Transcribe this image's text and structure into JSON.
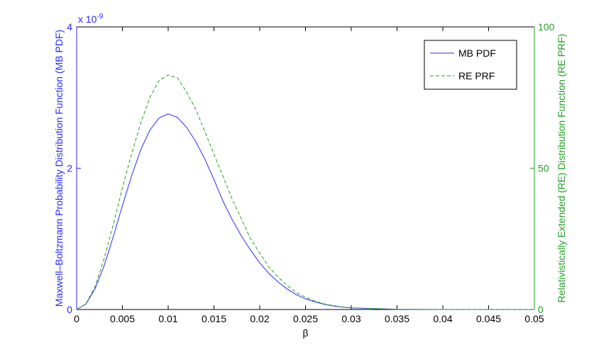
{
  "chart_data": {
    "type": "line",
    "xlabel": "β",
    "ylabel": "Maxwell–Boltzmann Probability Distribution Function (MB PDF)",
    "y2label": "Relativistically Extended (RE) Distribution Function (RE PRF)",
    "y_scale_label": "x 10",
    "y_scale_exponent": "-9",
    "xlim": [
      0,
      0.05
    ],
    "xticks": [
      0,
      0.005,
      0.01,
      0.015,
      0.02,
      0.025,
      0.03,
      0.035,
      0.04,
      0.045,
      0.05
    ],
    "ylim": [
      0,
      4
    ],
    "yticks": [
      0,
      2,
      4
    ],
    "y2lim": [
      0,
      100
    ],
    "y2ticks": [
      0,
      50,
      100
    ],
    "legend": "upper right",
    "x": [
      0,
      0.001,
      0.002,
      0.003,
      0.004,
      0.005,
      0.006,
      0.007,
      0.008,
      0.009,
      0.01,
      0.011,
      0.012,
      0.013,
      0.014,
      0.015,
      0.016,
      0.017,
      0.018,
      0.019,
      0.02,
      0.021,
      0.022,
      0.023,
      0.024,
      0.025,
      0.026,
      0.027,
      0.028,
      0.029,
      0.03,
      0.035,
      0.04,
      0.045,
      0.05
    ],
    "series": [
      {
        "name": "MB PDF",
        "color": "#2a2aff",
        "dash": false,
        "axis": "y",
        "values": [
          0,
          0.075,
          0.29,
          0.62,
          1.03,
          1.47,
          1.89,
          2.26,
          2.54,
          2.71,
          2.77,
          2.72,
          2.58,
          2.38,
          2.13,
          1.84,
          1.53,
          1.27,
          1.04,
          0.84,
          0.66,
          0.51,
          0.39,
          0.29,
          0.21,
          0.15,
          0.11,
          0.075,
          0.05,
          0.034,
          0.022,
          0.003,
          0,
          0,
          0
        ]
      },
      {
        "name": "RE PRF",
        "color": "#22a022",
        "dash": true,
        "axis": "y2",
        "values": [
          0,
          2,
          8,
          18,
          30,
          43,
          55,
          66,
          75,
          81,
          83,
          82,
          77,
          71,
          63,
          55,
          47,
          39,
          32,
          25,
          20,
          15,
          11.5,
          8.5,
          6,
          4.3,
          3,
          2,
          1.4,
          0.9,
          0.6,
          0.08,
          0,
          0,
          0
        ]
      }
    ]
  }
}
